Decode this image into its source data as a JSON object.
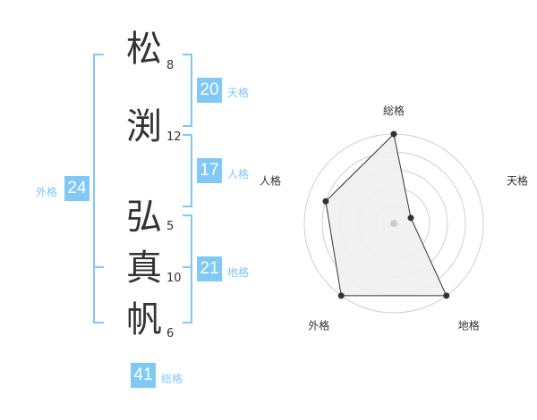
{
  "characters": [
    {
      "char": "松",
      "strokes": "8"
    },
    {
      "char": "渕",
      "strokes": "12"
    },
    {
      "char": "弘",
      "strokes": "5"
    },
    {
      "char": "真",
      "strokes": "10"
    },
    {
      "char": "帆",
      "strokes": "6"
    }
  ],
  "kaku": {
    "tenkaku": {
      "label": "天格",
      "value": "20"
    },
    "jinkaku": {
      "label": "人格",
      "value": "17"
    },
    "chikaku": {
      "label": "地格",
      "value": "21"
    },
    "gaikaku": {
      "label": "外格",
      "value": "24"
    },
    "soukaku": {
      "label": "総格",
      "value": "41"
    }
  },
  "colors": {
    "accent": "#80c8f5"
  },
  "chart_data": {
    "type": "radar",
    "axes": [
      "総格",
      "天格",
      "地格",
      "外格",
      "人格"
    ],
    "values": [
      5,
      1,
      5,
      5,
      4
    ],
    "range": [
      0,
      5
    ],
    "rings": 5
  }
}
